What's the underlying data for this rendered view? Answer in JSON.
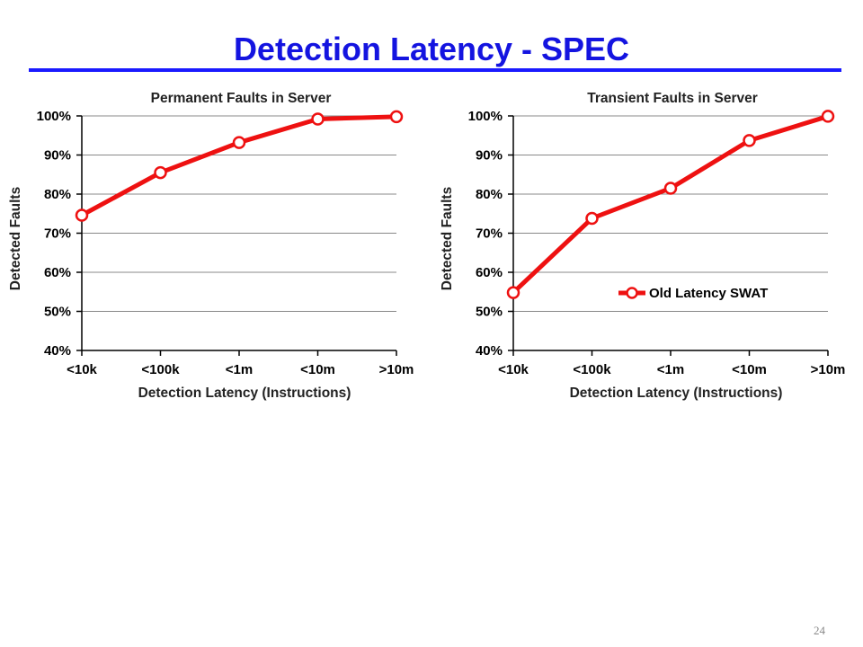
{
  "slide": {
    "title": "Detection Latency - SPEC",
    "page_number": "24",
    "accent_color": "#1414e0",
    "rule_color": "#1a1aff"
  },
  "chart_data": [
    {
      "type": "line",
      "title": "Permanent Faults in Server",
      "xlabel": "Detection Latency (Instructions)",
      "ylabel": "Detected Faults",
      "categories": [
        "<10k",
        "<100k",
        "<1m",
        "<10m",
        ">10m"
      ],
      "ylim": [
        0.4,
        1.0
      ],
      "yticks": [
        "40%",
        "50%",
        "60%",
        "70%",
        "80%",
        "90%",
        "100%"
      ],
      "grid": true,
      "legend": null,
      "series": [
        {
          "name": "",
          "color": "#ee1111",
          "values": [
            0.746,
            0.855,
            0.932,
            0.992,
            0.998
          ]
        }
      ]
    },
    {
      "type": "line",
      "title": "Transient Faults in Server",
      "xlabel": "Detection Latency (Instructions)",
      "ylabel": "Detected Faults",
      "categories": [
        "<10k",
        "<100k",
        "<1m",
        "<10m",
        ">10m"
      ],
      "ylim": [
        0.4,
        1.0
      ],
      "yticks": [
        "40%",
        "50%",
        "60%",
        "70%",
        "80%",
        "90%",
        "100%"
      ],
      "grid": true,
      "legend": "center-right",
      "series": [
        {
          "name": "Old Latency SWAT",
          "color": "#ee1111",
          "values": [
            0.548,
            0.738,
            0.815,
            0.937,
            0.999
          ]
        }
      ]
    }
  ]
}
